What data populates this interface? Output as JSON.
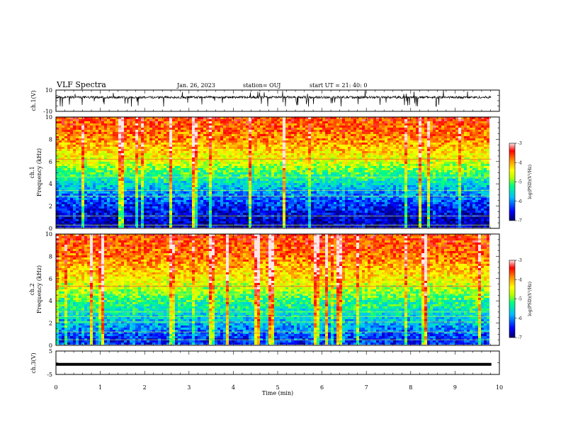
{
  "header": {
    "title": "VLF Spectra",
    "date": "Jan. 26, 2023",
    "station": "station= OUJ",
    "start": "start UT = 21: 40: 0"
  },
  "chart_data": [
    {
      "type": "line",
      "panel": "ch1-waveform",
      "ylabel": "ch.1(V)",
      "ylim": [
        -10,
        10
      ],
      "y_ticks": [
        "10",
        "-10"
      ],
      "baseline": 3.2,
      "x_range_min": [
        0,
        9.82
      ],
      "color": "#000000"
    },
    {
      "type": "heatmap",
      "panel": "ch1-spectrogram",
      "ylabel": "ch.1\nFrequency (kHz)",
      "y_ticks": [
        "0",
        "2",
        "4",
        "6",
        "8",
        "10"
      ],
      "ylim": [
        0,
        10
      ],
      "z_range": [
        -7,
        -3
      ],
      "colorbar_label": "log(PSD)(V²/Hz)",
      "colorbar_ticks": [
        "-3",
        "-4",
        "-5",
        "-6",
        "-7"
      ],
      "typical_log_psd_by_freq": [
        [
          0.5,
          -6.8
        ],
        [
          2,
          -6.4
        ],
        [
          4,
          -5.6
        ],
        [
          6,
          -4.6
        ],
        [
          8,
          -3.9
        ],
        [
          10,
          -3.6
        ]
      ],
      "horizontal_lines_khz": [
        0.3,
        1.1,
        2.9,
        3.4,
        4.6,
        6.2
      ]
    },
    {
      "type": "heatmap",
      "panel": "ch2-spectrogram",
      "ylabel": "ch.2\nFrequency (kHz)",
      "y_ticks": [
        "0",
        "2",
        "4",
        "6",
        "8",
        "10"
      ],
      "ylim": [
        0,
        10
      ],
      "z_range": [
        -7,
        -3
      ],
      "colorbar_label": "log(PSD)(V²/Hz)",
      "colorbar_ticks": [
        "-3",
        "-4",
        "-5",
        "-6",
        "-7"
      ],
      "typical_log_psd_by_freq": [
        [
          0.5,
          -6.4
        ],
        [
          2,
          -5.8
        ],
        [
          4,
          -5.2
        ],
        [
          6,
          -4.4
        ],
        [
          8,
          -3.8
        ],
        [
          10,
          -3.6
        ]
      ],
      "horizontal_lines_khz": [
        0.5,
        1.2,
        2.1,
        2.6,
        3.0,
        4.6,
        5.3
      ]
    },
    {
      "type": "line",
      "panel": "ch3-waveform",
      "ylabel": "ch.3(V)",
      "ylim": [
        -5,
        5
      ],
      "y_ticks": [
        "5",
        "-5"
      ],
      "constant_value": -0.7,
      "x_range_min": [
        0,
        9.82
      ],
      "color": "#000000"
    },
    {
      "type": "axis",
      "xlabel": "Time (min)",
      "xlim": [
        0,
        10
      ],
      "x_ticks": [
        "0",
        "1",
        "2",
        "3",
        "4",
        "5",
        "6",
        "7",
        "8",
        "9",
        "10"
      ]
    }
  ],
  "colormap": [
    "#000066",
    "#0000ff",
    "#00bfff",
    "#00ff80",
    "#b4ff00",
    "#ffff00",
    "#ff8c00",
    "#ff0000",
    "#ffe6e6"
  ]
}
